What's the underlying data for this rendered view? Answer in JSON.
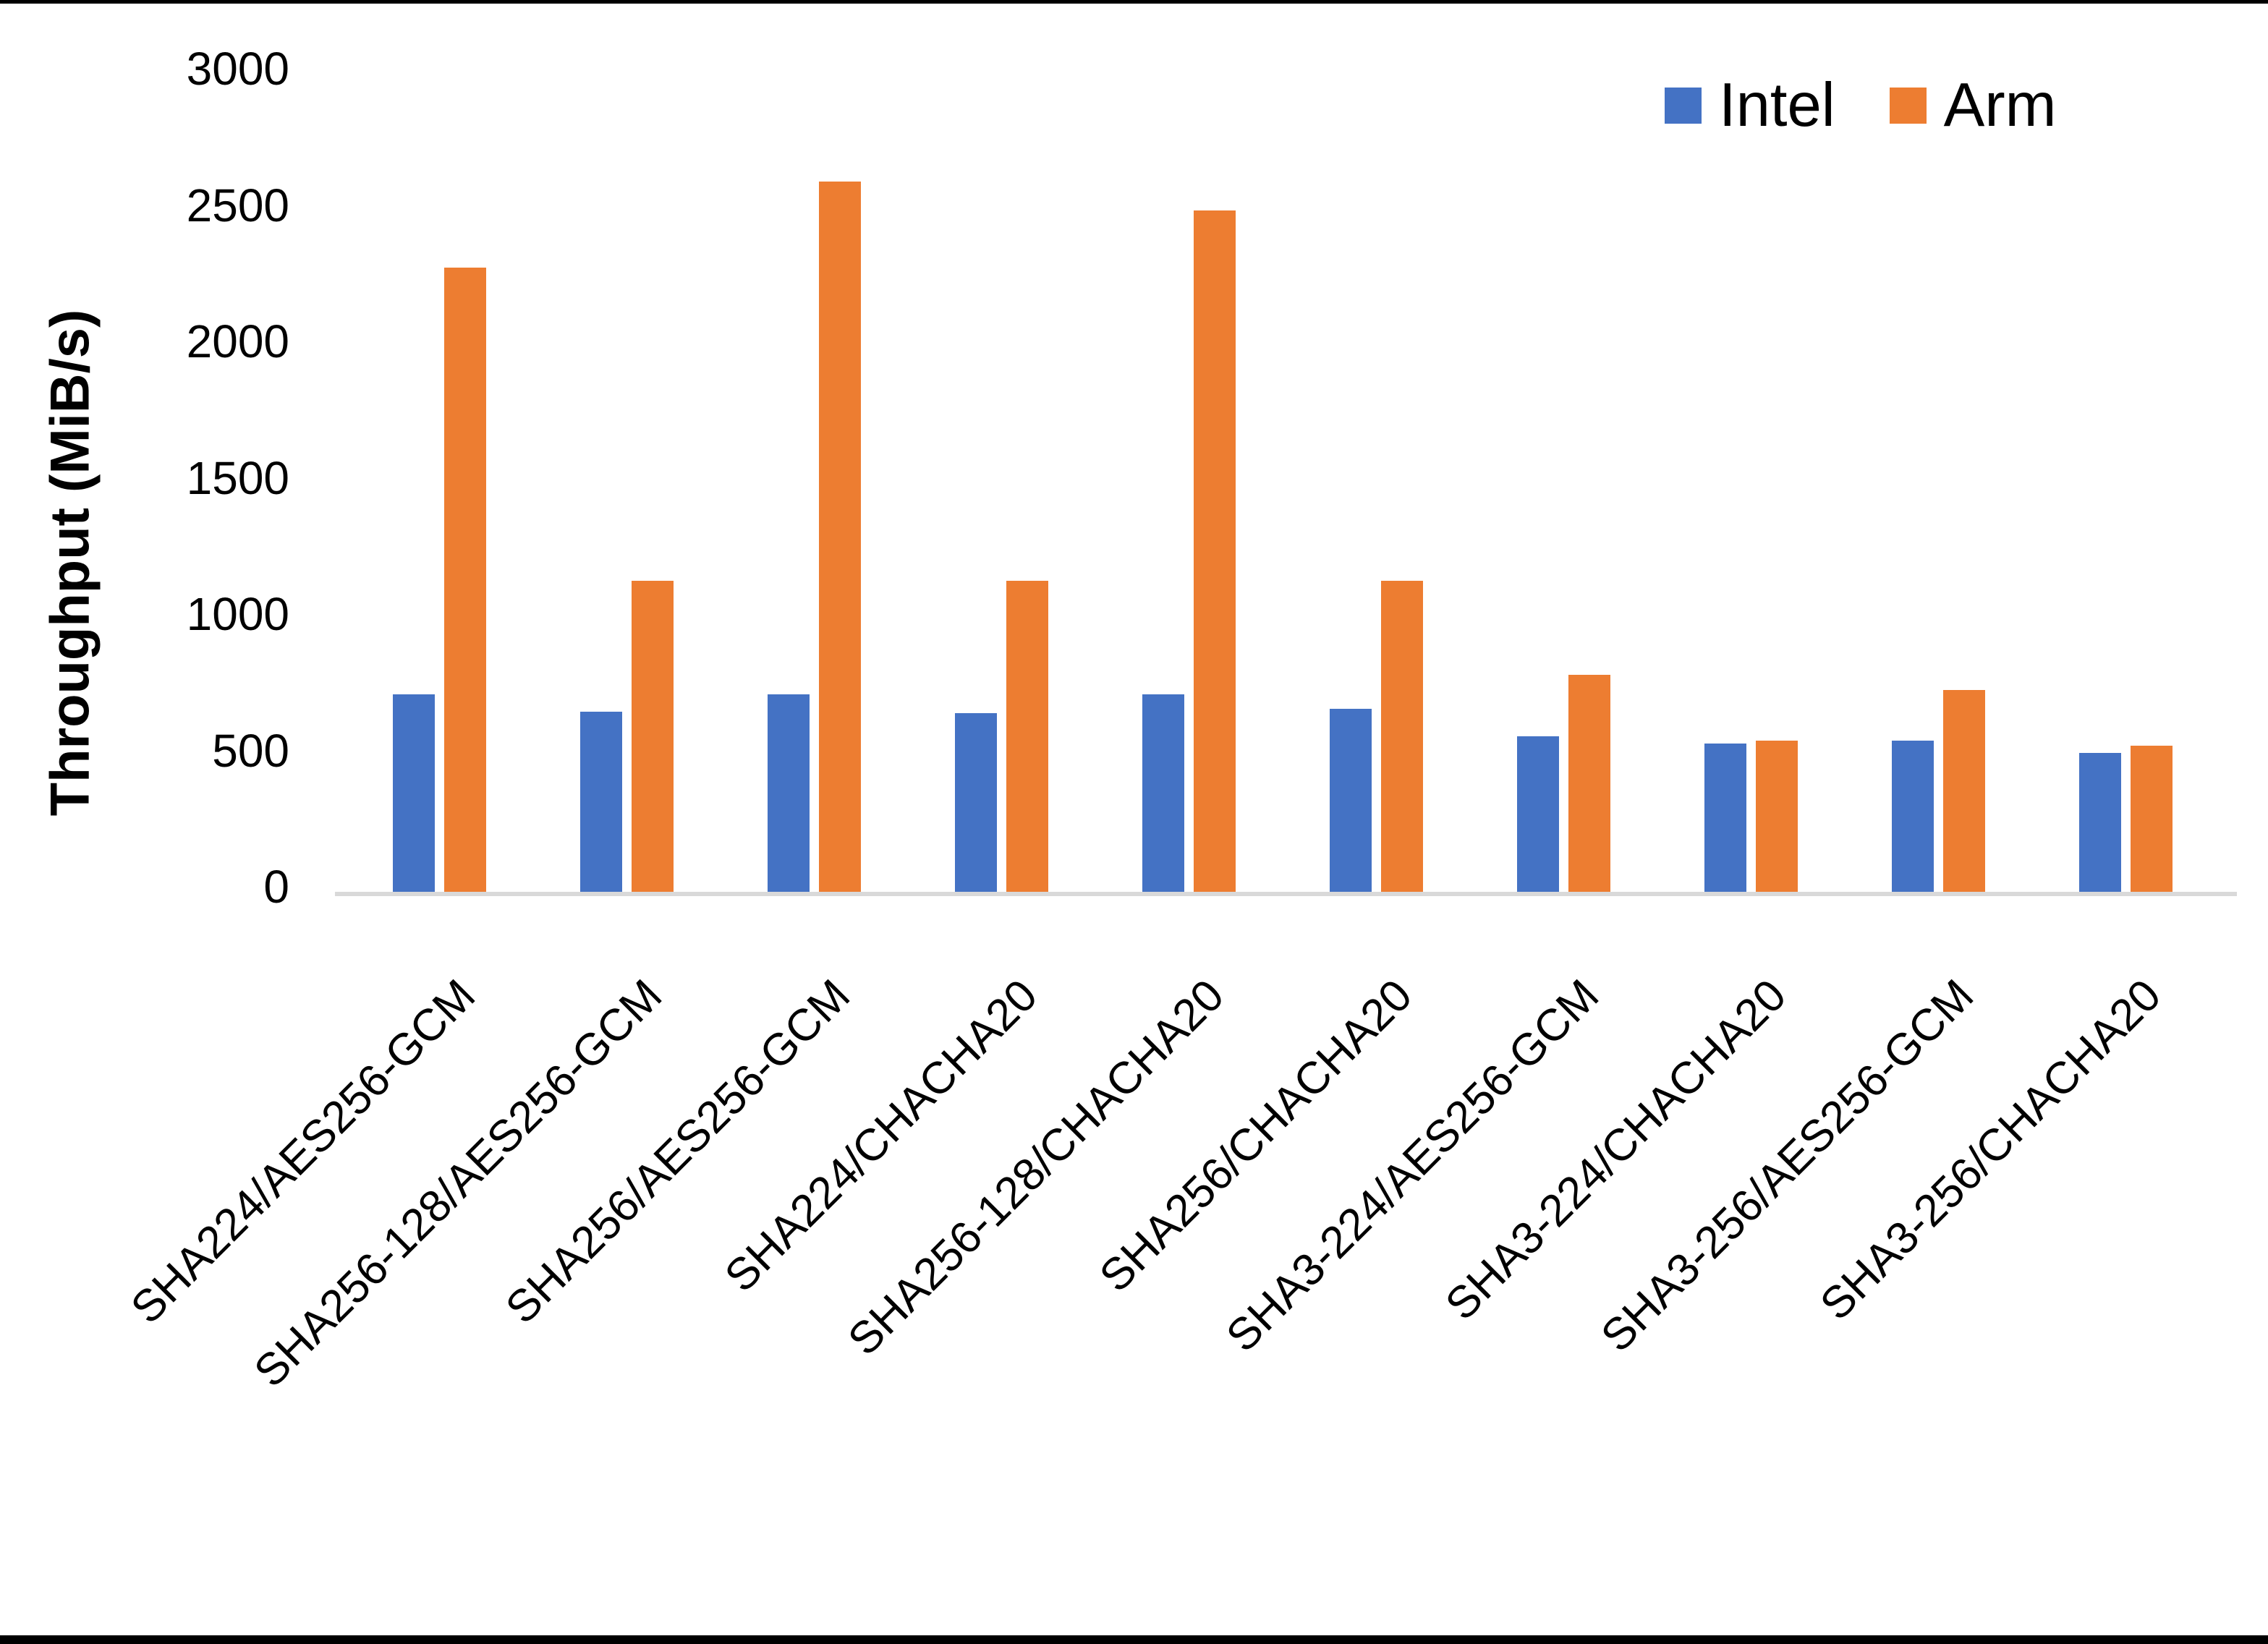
{
  "figure": {
    "background_color": "#ffffff",
    "top_rule_color": "#000000",
    "bottom_rule_color": "#000000",
    "axis_line_color": "#d9d9d9"
  },
  "legend": {
    "items": [
      {
        "label": "Intel",
        "color": "#4472c4"
      },
      {
        "label": "Arm",
        "color": "#ed7d31"
      }
    ]
  },
  "chart_data": {
    "type": "bar",
    "title": "",
    "xlabel": "",
    "ylabel": "Throughput (MiB/s)",
    "ylim": [
      0,
      3000
    ],
    "yticks": [
      0,
      500,
      1000,
      1500,
      2000,
      2500,
      3000
    ],
    "grid": false,
    "legend_position": "top-right",
    "categories": [
      "SHA224/AES256-GCM",
      "SHA256-128/AES256-GCM",
      "SHA256/AES256-GCM",
      "SHA224/CHACHA20",
      "SHA256-128/CHACHA20",
      "SHA256/CHACHA20",
      "SHA3-224/AES256-GCM",
      "SHA3-224/CHACHA20",
      "SHA3-256/AES256-GCM",
      "SHA3-256/CHACHA20"
    ],
    "series": [
      {
        "name": "Intel",
        "color": "#4472c4",
        "values": [
          725,
          660,
          725,
          655,
          725,
          670,
          570,
          545,
          555,
          510
        ]
      },
      {
        "name": "Arm",
        "color": "#ed7d31",
        "values": [
          2290,
          1140,
          2605,
          1140,
          2500,
          1140,
          795,
          555,
          740,
          535
        ]
      }
    ]
  }
}
